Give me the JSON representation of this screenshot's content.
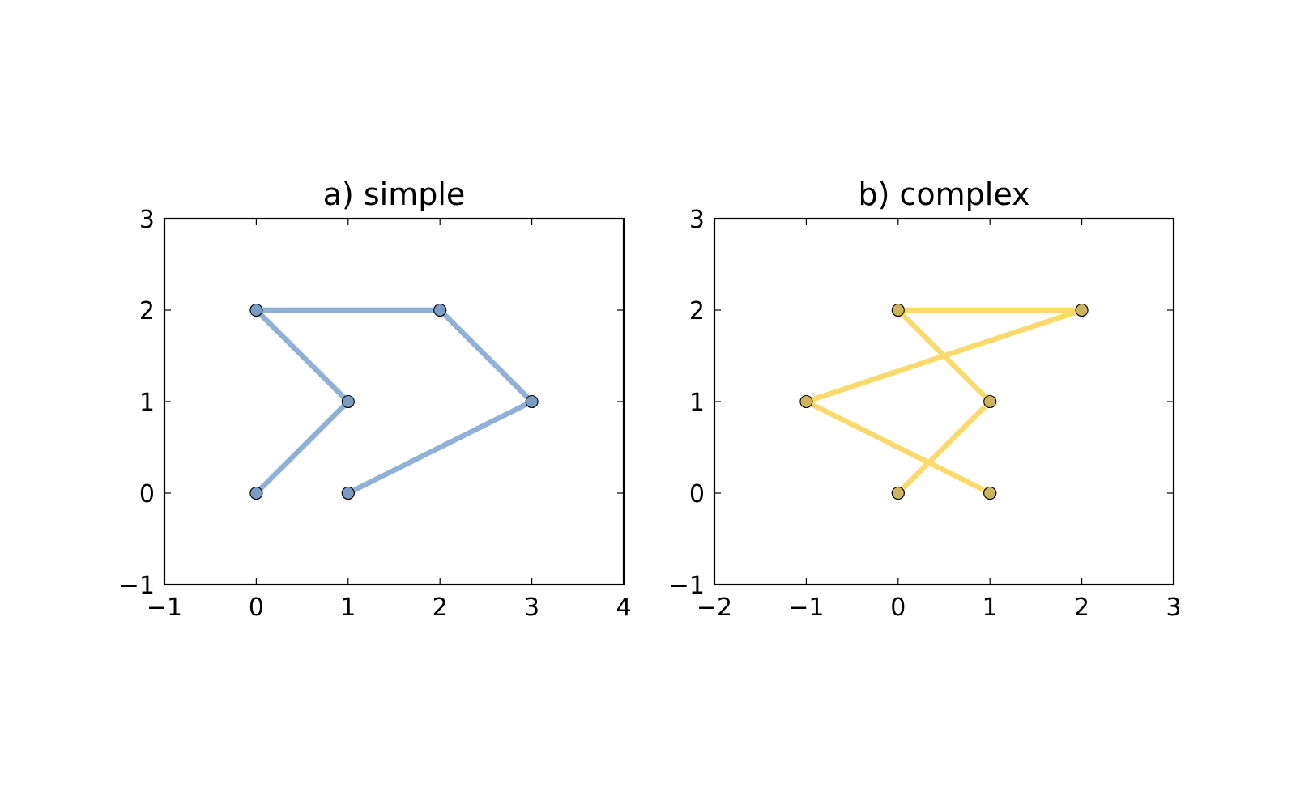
{
  "chart_data": [
    {
      "type": "line",
      "title": "a) simple",
      "xlabel": "",
      "ylabel": "",
      "xlim": [
        -1,
        4
      ],
      "ylim": [
        -1,
        3
      ],
      "xticks": [
        -1,
        0,
        1,
        2,
        3,
        4
      ],
      "yticks": [
        -1,
        0,
        1,
        2,
        3
      ],
      "xtick_labels": [
        "−1",
        "0",
        "1",
        "2",
        "3",
        "4"
      ],
      "ytick_labels": [
        "−1",
        "0",
        "1",
        "2",
        "3"
      ],
      "grid": false,
      "line_color": "#8fb1d8",
      "marker_color": "#7a9cc4",
      "series": [
        {
          "x": [
            0,
            1,
            0,
            2,
            3,
            1
          ],
          "y": [
            0,
            1,
            2,
            2,
            1,
            0
          ]
        }
      ],
      "origin_points": [
        {
          "x": 0,
          "y": 0
        },
        {
          "x": 1,
          "y": 0
        }
      ]
    },
    {
      "type": "line",
      "title": "b) complex",
      "xlabel": "",
      "ylabel": "",
      "xlim": [
        -2,
        3
      ],
      "ylim": [
        -1,
        3
      ],
      "xticks": [
        -2,
        -1,
        0,
        1,
        2,
        3
      ],
      "yticks": [
        -1,
        0,
        1,
        2,
        3
      ],
      "xtick_labels": [
        "−2",
        "−1",
        "0",
        "1",
        "2",
        "3"
      ],
      "ytick_labels": [
        "−1",
        "0",
        "1",
        "2",
        "3"
      ],
      "grid": false,
      "line_color": "#fcd96c",
      "marker_color": "#cfb25e",
      "series": [
        {
          "x": [
            0,
            1,
            0,
            2,
            -1,
            1
          ],
          "y": [
            0,
            1,
            2,
            2,
            1,
            0
          ]
        }
      ],
      "origin_points": [
        {
          "x": 0,
          "y": 0
        },
        {
          "x": 1,
          "y": 0
        }
      ]
    }
  ]
}
